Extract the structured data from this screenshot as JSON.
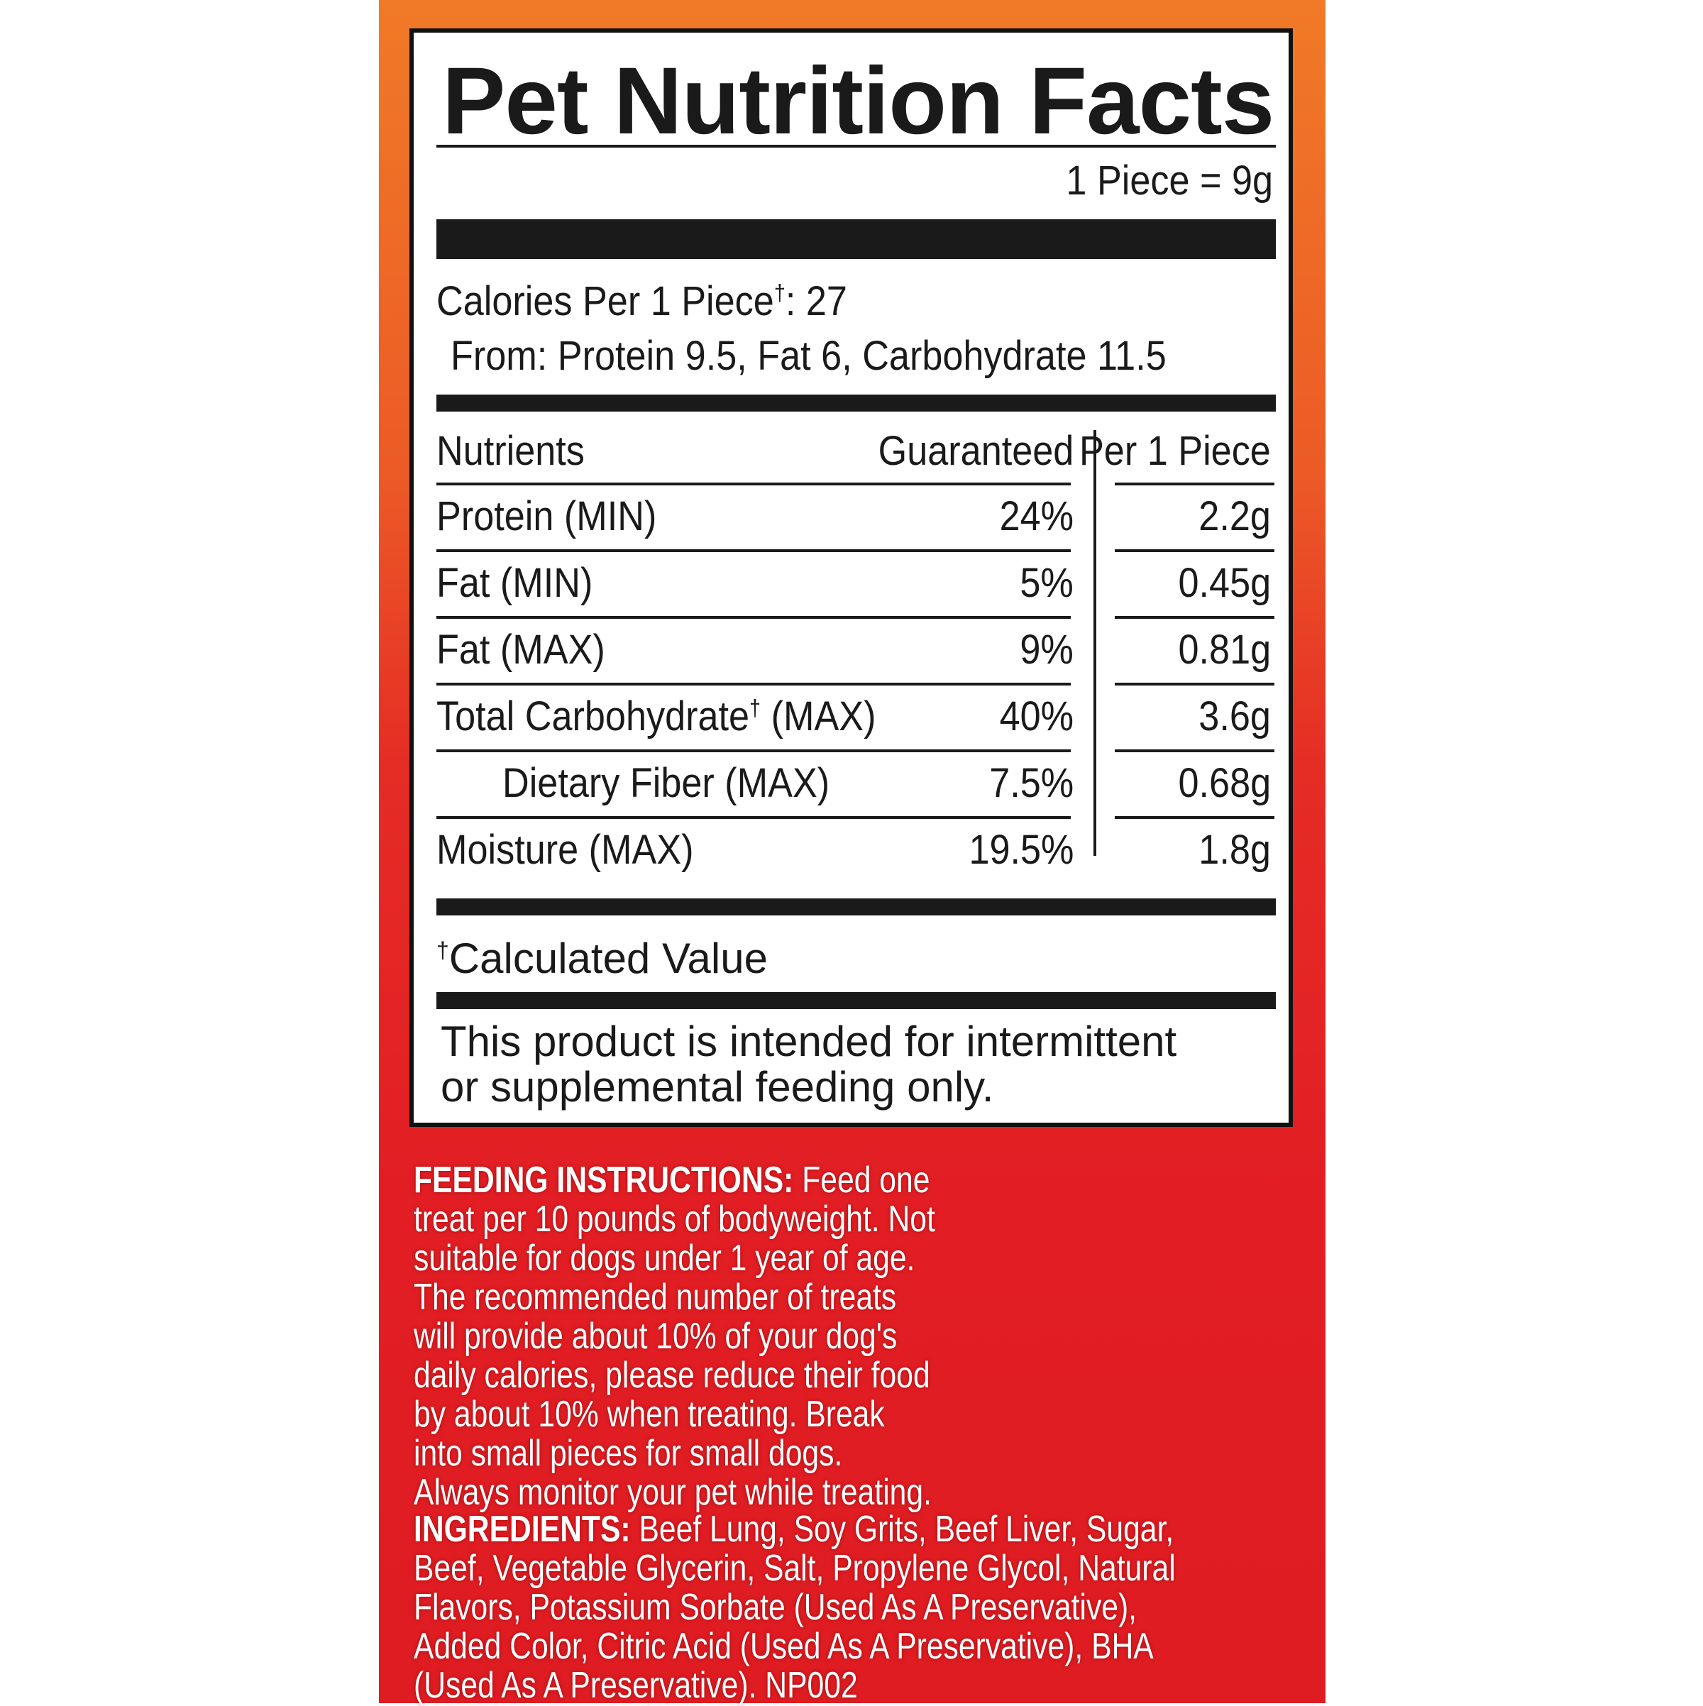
{
  "label": {
    "title": "Pet Nutrition Facts",
    "serving": "1 Piece = 9g",
    "calories_line": "Calories Per 1 Piece",
    "calories_value": ": 27",
    "calories_from": "From: Protein 9.5, Fat 6, Carbohydrate 11.5",
    "dagger": "†",
    "headers": {
      "nutrients": "Nutrients",
      "guaranteed": "Guaranteed",
      "per_piece": "Per 1 Piece"
    },
    "rows": [
      {
        "name": "Protein (MIN)",
        "guaranteed": "24%",
        "per_piece": "2.2g"
      },
      {
        "name": "Fat (MIN)",
        "guaranteed": "5%",
        "per_piece": "0.45g"
      },
      {
        "name": "Fat (MAX)",
        "guaranteed": "9%",
        "per_piece": "0.81g"
      },
      {
        "name": "Total Carbohydrate",
        "name_suffix": " (MAX)",
        "guaranteed": "40%",
        "per_piece": "3.6g"
      },
      {
        "name": "Dietary Fiber (MAX)",
        "guaranteed": "7.5%",
        "per_piece": "0.68g"
      },
      {
        "name": "Moisture (MAX)",
        "guaranteed": "19.5%",
        "per_piece": "1.8g"
      }
    ],
    "footnote": "Calculated Value",
    "note_line1": "This product is intended for intermittent",
    "note_line2": "or supplemental feeding only."
  },
  "feeding": {
    "heading": "FEEDING INSTRUCTIONS:",
    "text": " Feed one treat per 10 pounds of bodyweight. Not suitable for dogs under 1 year of age. The recommended number of treats will provide about 10% of your dog's daily calories, please reduce their food by about 10% when treating. Break into small pieces for small dogs. Always monitor your pet while treating."
  },
  "ingredients": {
    "heading": "INGREDIENTS:",
    "text": " Beef Lung, Soy Grits, Beef Liver, Sugar, Beef, Vegetable Glycerin, Salt, Propylene Glycol, Natural Flavors, Potassium Sorbate (Used As A Preservative), Added Color, Citric Acid (Used As A Preservative), BHA (Used As A Preservative). NP002"
  },
  "colors": {
    "panel_top": "#f07a27",
    "panel_bottom": "#e21e24",
    "ink": "#1a1a1a"
  }
}
